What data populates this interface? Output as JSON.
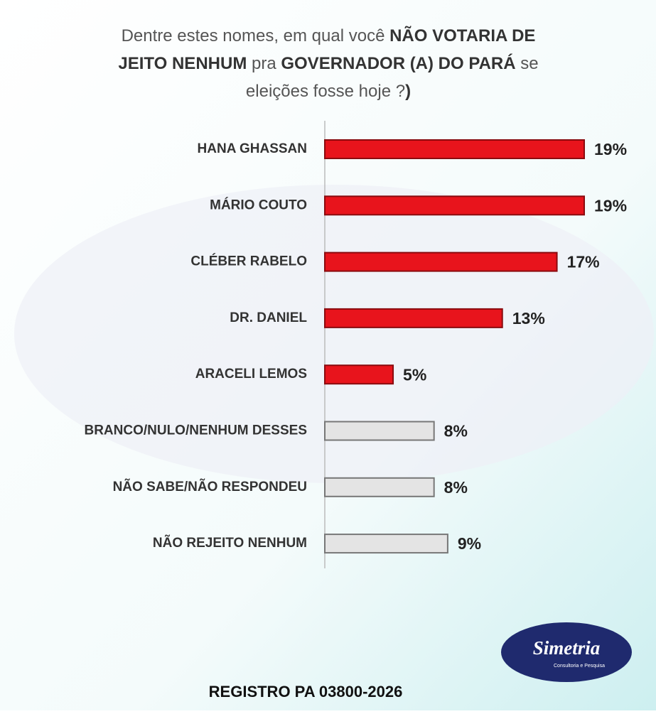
{
  "chart_data": {
    "type": "hbar",
    "title": [
      [
        {
          "text": "Dentre estes nomes, em qual você ",
          "bold": false
        },
        {
          "text": "NÃO VOTARIA DE",
          "bold": true
        }
      ],
      [
        {
          "text": "JEITO NENHUM",
          "bold": true
        },
        {
          "text": " pra ",
          "bold": false
        },
        {
          "text": "GOVERNADOR (A) DO PARÁ",
          "bold": true
        },
        {
          "text": " se",
          "bold": false
        }
      ],
      [
        {
          "text": "eleições fosse hoje ?",
          "bold": false
        },
        {
          "text": ")",
          "bold": true
        }
      ]
    ],
    "categories": [
      "HANA GHASSAN",
      "MÁRIO COUTO",
      "CLÉBER RABELO",
      "DR. DANIEL",
      "ARACELI LEMOS",
      "BRANCO/NULO/NENHUM DESSES",
      "NÃO SABE/NÃO RESPONDEU",
      "NÃO REJEITO NENHUM"
    ],
    "values": [
      19,
      19,
      17,
      13,
      5,
      8,
      8,
      9
    ],
    "value_labels": [
      "19%",
      "19%",
      "17%",
      "13%",
      "5%",
      "8%",
      "8%",
      "9%"
    ],
    "colors": [
      "#e8141c",
      "#e8141c",
      "#e8141c",
      "#e8141c",
      "#e8141c",
      "#e4e4e4",
      "#e4e4e4",
      "#e4e4e4"
    ],
    "footer": "REGISTRO PA 03800-2026",
    "logo": {
      "name": "Simetria",
      "tagline": "Consultoria e Pesquisa"
    }
  }
}
